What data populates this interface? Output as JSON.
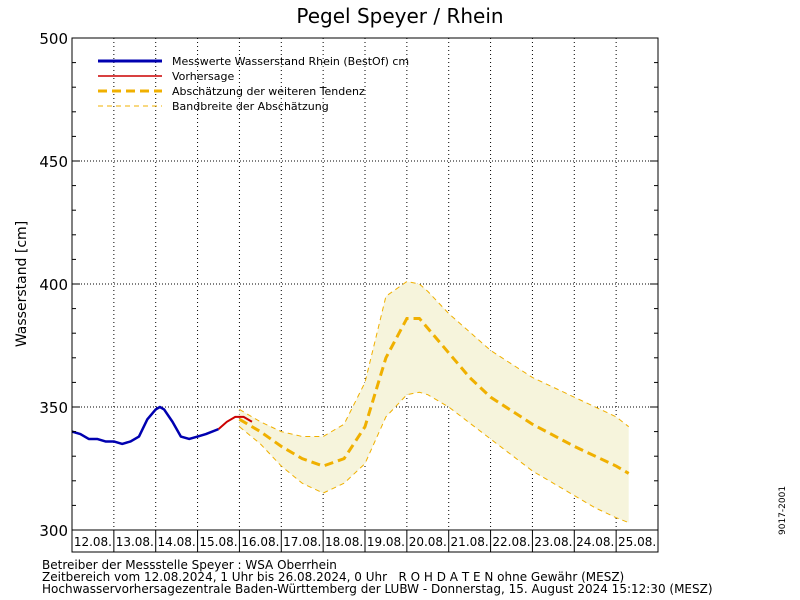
{
  "chart_data": {
    "type": "line",
    "title": "Pegel Speyer / Rhein",
    "ylabel": "Wasserstand [cm]",
    "xlabel": "",
    "ylim": [
      300,
      500
    ],
    "yticks": [
      300,
      350,
      400,
      450,
      500
    ],
    "x_ticklabels": [
      "12.08.",
      "13.08.",
      "14.08.",
      "15.08.",
      "16.08.",
      "17.08.",
      "18.08.",
      "19.08.",
      "20.08.",
      "21.08.",
      "22.08.",
      "23.08.",
      "24.08.",
      "25.08."
    ],
    "xlim_days": [
      12,
      26
    ],
    "grid": true,
    "legend_position": "top-left",
    "legend": [
      {
        "label": "Messwerte Wasserstand Rhein (BestOf)   cm",
        "color": "#0000b0",
        "style": "solid-thick"
      },
      {
        "label": "Vorhersage",
        "color": "#cc0000",
        "style": "solid"
      },
      {
        "label": "Abschätzung der weiteren Tendenz",
        "color": "#f0b000",
        "style": "dashed-thick"
      },
      {
        "label": "Bandbreite der Abschätzung",
        "color": "#f0b000",
        "style": "dashed-thin"
      }
    ],
    "series": [
      {
        "name": "Messwerte Wasserstand Rhein (BestOf)   cm",
        "x": [
          12.0,
          12.2,
          12.4,
          12.6,
          12.8,
          13.0,
          13.2,
          13.4,
          13.6,
          13.8,
          14.0,
          14.1,
          14.2,
          14.4,
          14.6,
          14.8,
          15.0,
          15.2,
          15.5
        ],
        "y": [
          340,
          339,
          337,
          337,
          336,
          336,
          335,
          336,
          338,
          345,
          349,
          350,
          349,
          344,
          338,
          337,
          338,
          339,
          341
        ]
      },
      {
        "name": "Vorhersage",
        "x": [
          15.5,
          15.7,
          15.9,
          16.1,
          16.3
        ],
        "y": [
          341,
          344,
          346,
          346,
          344
        ]
      },
      {
        "name": "Abschätzung der weiteren Tendenz",
        "x": [
          16.0,
          16.5,
          17.0,
          17.5,
          18.0,
          18.5,
          19.0,
          19.5,
          20.0,
          20.3,
          20.5,
          21.0,
          21.5,
          22.0,
          23.0,
          24.0,
          24.5,
          25.0,
          25.3
        ],
        "y": [
          345,
          340,
          334,
          329,
          326,
          329,
          342,
          370,
          386,
          386,
          382,
          372,
          362,
          354,
          343,
          334,
          330,
          326,
          323
        ]
      },
      {
        "name": "Bandbreite der Abschätzung (oben)",
        "x": [
          16.0,
          16.5,
          17.0,
          17.5,
          18.0,
          18.5,
          19.0,
          19.5,
          20.0,
          20.3,
          20.5,
          21.0,
          22.0,
          23.0,
          24.0,
          24.5,
          25.0,
          25.3
        ],
        "y": [
          349,
          344,
          340,
          338,
          338,
          343,
          360,
          395,
          401,
          400,
          397,
          388,
          373,
          362,
          354,
          350,
          346,
          342
        ]
      },
      {
        "name": "Bandbreite der Abschätzung (unten)",
        "x": [
          16.0,
          16.5,
          17.0,
          17.5,
          18.0,
          18.5,
          19.0,
          19.5,
          20.0,
          20.3,
          20.5,
          21.0,
          22.0,
          23.0,
          24.0,
          24.5,
          25.0,
          25.3
        ],
        "y": [
          342,
          335,
          326,
          319,
          315,
          319,
          327,
          346,
          355,
          356,
          355,
          350,
          337,
          324,
          314,
          309,
          305,
          303
        ]
      }
    ]
  },
  "footer": {
    "line1": "Betreiber der Messstelle Speyer : WSA Oberrhein",
    "line2": "Zeitbereich vom 12.08.2024, 1 Uhr bis 26.08.2024, 0 Uhr   R O H D A T E N ohne Gewähr (MESZ)",
    "line3": "Hochwasservorhersagezentrale Baden-Württemberg der LUBW - Donnerstag, 15. August 2024 15:12:30 (MESZ)"
  },
  "sidecode": "9017-2001",
  "colors": {
    "measured": "#0000b0",
    "forecast": "#cc0000",
    "tendency": "#f0b000",
    "band_fill": "#f6f4dc"
  }
}
